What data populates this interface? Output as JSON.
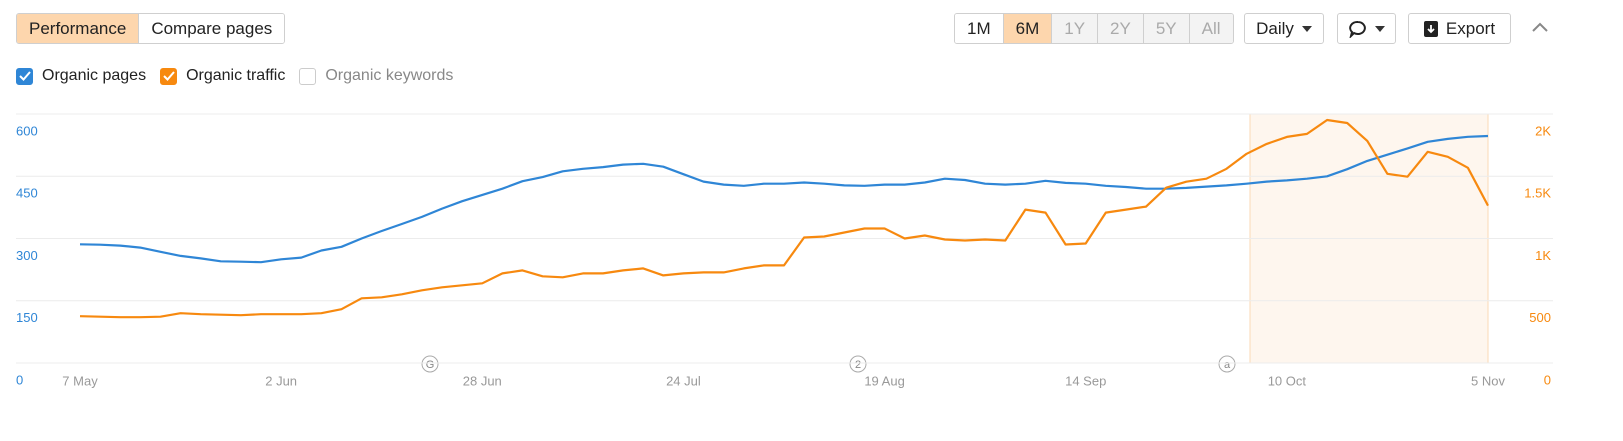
{
  "toolbar": {
    "tabs": [
      "Performance",
      "Compare pages"
    ],
    "active_tab": 0,
    "ranges": [
      "1M",
      "6M",
      "1Y",
      "2Y",
      "5Y",
      "All"
    ],
    "active_range": 1,
    "disabled_ranges": [
      2,
      3,
      4,
      5
    ],
    "interval": "Daily",
    "export": "Export"
  },
  "unchecked_series": [
    "Organic keywords"
  ],
  "annotations": [
    "G",
    "2",
    "a"
  ],
  "chart_data": {
    "type": "line",
    "grid": true,
    "categories": [
      "7 May",
      null,
      null,
      null,
      null,
      null,
      null,
      null,
      null,
      null,
      "2 Jun",
      null,
      null,
      null,
      null,
      null,
      null,
      null,
      null,
      null,
      "28 Jun",
      null,
      null,
      null,
      null,
      null,
      null,
      null,
      null,
      null,
      "24 Jul",
      null,
      null,
      null,
      null,
      null,
      null,
      null,
      null,
      null,
      "19 Aug",
      null,
      null,
      null,
      null,
      null,
      null,
      null,
      null,
      null,
      "14 Sep",
      null,
      null,
      null,
      null,
      null,
      null,
      null,
      null,
      null,
      "10 Oct",
      null,
      null,
      null,
      null,
      null,
      null,
      null,
      null,
      null,
      "5 Nov"
    ],
    "ylim": [
      0,
      600
    ],
    "yticks": [
      0,
      150,
      300,
      450,
      600
    ],
    "y2lim": [
      0,
      2000
    ],
    "y2ticks": [
      0,
      500,
      {
        "value": 1000,
        "label": "1K"
      },
      {
        "value": 1500,
        "label": "1.5K"
      },
      {
        "value": 2000,
        "label": "2K"
      }
    ],
    "series": [
      {
        "name": "Organic pages",
        "color": "#2f86d6",
        "checked": true,
        "values": [
          286,
          285,
          283,
          278,
          268,
          258,
          252,
          245,
          244,
          243,
          250,
          254,
          271,
          280,
          300,
          318,
          335,
          352,
          372,
          390,
          405,
          420,
          438,
          448,
          462,
          468,
          472,
          478,
          480,
          473,
          455,
          437,
          430,
          427,
          432,
          432,
          435,
          432,
          428,
          427,
          430,
          430,
          435,
          444,
          441,
          432,
          430,
          432,
          439,
          434,
          432,
          427,
          424,
          420,
          420,
          422,
          425,
          428,
          432,
          437,
          440,
          444,
          450,
          467,
          487,
          502,
          517,
          533,
          540,
          545,
          547
        ]
      },
      {
        "name": "Organic traffic",
        "color": "#f7890f",
        "checked": true,
        "axis": "y2",
        "values": [
          376,
          372,
          368,
          368,
          372,
          400,
          392,
          388,
          384,
          392,
          392,
          392,
          400,
          432,
          520,
          528,
          552,
          584,
          608,
          624,
          640,
          720,
          744,
          696,
          688,
          720,
          720,
          744,
          760,
          704,
          720,
          728,
          728,
          760,
          784,
          784,
          1008,
          1016,
          1048,
          1080,
          1080,
          1000,
          1024,
          992,
          984,
          992,
          984,
          1232,
          1208,
          952,
          960,
          1208,
          1232,
          1256,
          1408,
          1456,
          1480,
          1560,
          1680,
          1760,
          1816,
          1840,
          1952,
          1928,
          1784,
          1520,
          1496,
          1696,
          1656,
          1568,
          1264
        ]
      }
    ]
  }
}
